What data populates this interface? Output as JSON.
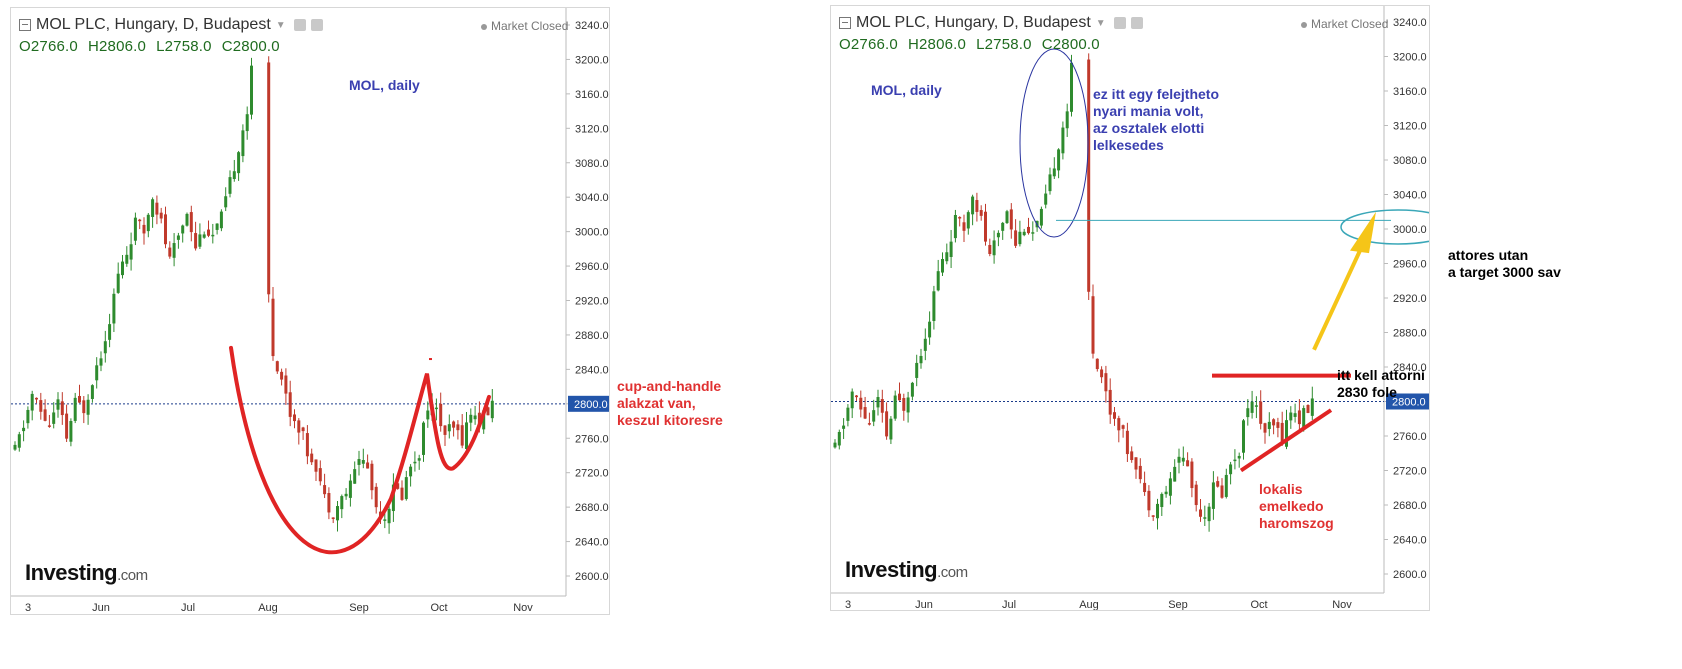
{
  "chart_data": [
    {
      "type": "candlestick",
      "title": "MOL PLC, Hungary, D, Budapest",
      "ohlc_header": {
        "open": "O2766.0",
        "high": "H2806.0",
        "low": "L2758.0",
        "close": "C2800.0"
      },
      "status": "Market Closed",
      "logo": "Investing",
      "logo_suffix": ".com",
      "x_tick_labels": [
        "3",
        "Jun",
        "Jul",
        "Aug",
        "Sep",
        "Oct",
        "Nov"
      ],
      "y_tick_labels": [
        "3240.0",
        "3200.0",
        "3160.0",
        "3120.0",
        "3080.0",
        "3040.0",
        "3000.0",
        "2960.0",
        "2920.0",
        "2880.0",
        "2840.0",
        "2800.0",
        "2760.0",
        "2720.0",
        "2680.0",
        "2640.0",
        "2600.0"
      ],
      "ylim": [
        2590,
        3250
      ],
      "last_price": "2800.0",
      "price_path": [
        [
          0,
          2745
        ],
        [
          2,
          2775
        ],
        [
          4,
          2810
        ],
        [
          6,
          2790
        ],
        [
          8,
          2775
        ],
        [
          10,
          2800
        ],
        [
          12,
          2760
        ],
        [
          14,
          2800
        ],
        [
          16,
          2795
        ],
        [
          18,
          2830
        ],
        [
          20,
          2860
        ],
        [
          22,
          2900
        ],
        [
          24,
          2950
        ],
        [
          26,
          2975
        ],
        [
          28,
          3010
        ],
        [
          30,
          3000
        ],
        [
          32,
          3045
        ],
        [
          34,
          3010
        ],
        [
          36,
          2965
        ],
        [
          38,
          2995
        ],
        [
          40,
          3025
        ],
        [
          42,
          2985
        ],
        [
          44,
          3005
        ],
        [
          46,
          2995
        ],
        [
          48,
          3015
        ],
        [
          50,
          3055
        ],
        [
          52,
          3100
        ],
        [
          54,
          3140
        ],
        [
          55,
          3185
        ],
        [
          60,
          2860
        ],
        [
          62,
          2830
        ],
        [
          64,
          2790
        ],
        [
          66,
          2775
        ],
        [
          68,
          2745
        ],
        [
          70,
          2730
        ],
        [
          72,
          2690
        ],
        [
          74,
          2675
        ],
        [
          76,
          2690
        ],
        [
          78,
          2705
        ],
        [
          80,
          2740
        ],
        [
          82,
          2725
        ],
        [
          84,
          2680
        ],
        [
          86,
          2670
        ],
        [
          88,
          2700
        ],
        [
          90,
          2695
        ],
        [
          92,
          2730
        ],
        [
          94,
          2745
        ],
        [
          96,
          2800
        ],
        [
          98,
          2790
        ],
        [
          100,
          2765
        ],
        [
          102,
          2770
        ],
        [
          104,
          2760
        ],
        [
          106,
          2790
        ],
        [
          108,
          2780
        ],
        [
          110,
          2790
        ],
        [
          111,
          2800
        ]
      ],
      "annotations": [
        "MOL, daily",
        "cup-and-handle\nalakzat van,\nkeszul kitoresre"
      ]
    },
    {
      "type": "candlestick",
      "title": "MOL PLC, Hungary, D, Budapest",
      "ohlc_header": {
        "open": "O2766.0",
        "high": "H2806.0",
        "low": "L2758.0",
        "close": "C2800.0"
      },
      "status": "Market Closed",
      "logo": "Investing",
      "logo_suffix": ".com",
      "x_tick_labels": [
        "3",
        "Jun",
        "Jul",
        "Aug",
        "Sep",
        "Oct",
        "Nov"
      ],
      "y_tick_labels": [
        "3240.0",
        "3200.0",
        "3160.0",
        "3120.0",
        "3080.0",
        "3040.0",
        "3000.0",
        "2960.0",
        "2920.0",
        "2880.0",
        "2840.0",
        "2800.0",
        "2760.0",
        "2720.0",
        "2680.0",
        "2640.0",
        "2600.0"
      ],
      "ylim": [
        2590,
        3250
      ],
      "last_price": "2800.0",
      "annotations": [
        "MOL, daily",
        "ez itt egy felejtheto\nnyari mania volt,\naz osztalek elotti\nlelkesedes",
        "attores utan\na target 3000 sav",
        "itt kell attorni 2830 fole",
        "lokalis\nemelkedo\nharomszog"
      ],
      "lines": {
        "breakout_level": 2830,
        "target_level": 3000
      }
    }
  ]
}
